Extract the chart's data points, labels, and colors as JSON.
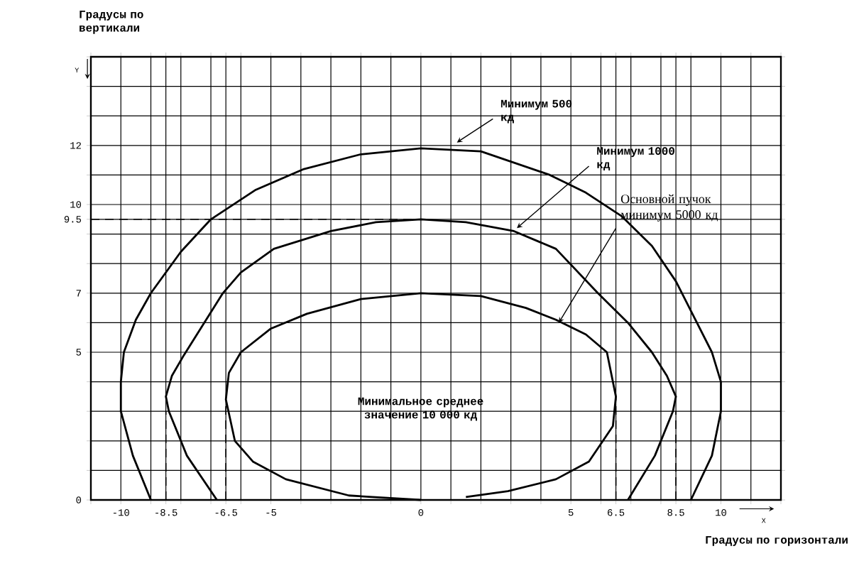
{
  "chart_data": {
    "type": "line",
    "xlabel": "Градусы по горизонтали",
    "ylabel": "Градусы по вертикали",
    "xlim": [
      -11,
      12
    ],
    "ylim": [
      0,
      15
    ],
    "xticks": [
      {
        "value": -11,
        "label": null
      },
      -10,
      {
        "value": -9,
        "label": null
      },
      {
        "value": -8.5,
        "label": "-8.5"
      },
      {
        "value": -8,
        "label": null
      },
      {
        "value": -7,
        "label": null
      },
      {
        "value": -6.5,
        "label": "-6.5"
      },
      {
        "value": -6,
        "label": null
      },
      -5,
      {
        "value": -4,
        "label": null
      },
      {
        "value": -3,
        "label": null
      },
      {
        "value": -2,
        "label": null
      },
      {
        "value": -1,
        "label": null
      },
      0,
      {
        "value": 1,
        "label": null
      },
      {
        "value": 2,
        "label": null
      },
      {
        "value": 3,
        "label": null
      },
      {
        "value": 4,
        "label": null
      },
      5,
      {
        "value": 6,
        "label": null
      },
      {
        "value": 6.5,
        "label": "6.5"
      },
      {
        "value": 7,
        "label": null
      },
      {
        "value": 8,
        "label": null
      },
      {
        "value": 8.5,
        "label": "8.5"
      },
      {
        "value": 9,
        "label": null
      },
      10,
      {
        "value": 11,
        "label": null
      },
      {
        "value": 12,
        "label": null
      }
    ],
    "yticks": [
      0,
      {
        "value": 1,
        "label": null
      },
      {
        "value": 2,
        "label": null
      },
      {
        "value": 3,
        "label": null
      },
      {
        "value": 4,
        "label": null
      },
      5,
      {
        "value": 6,
        "label": null
      },
      7,
      {
        "value": 8,
        "label": null
      },
      {
        "value": 9,
        "label": null
      },
      9.5,
      10,
      {
        "value": 11,
        "label": null
      },
      12,
      {
        "value": 13,
        "label": null
      },
      {
        "value": 14,
        "label": null
      },
      {
        "value": 15,
        "label": null
      }
    ],
    "grid": true,
    "marker": "none",
    "annotations": [
      "Y",
      "X",
      "Минимальное среднее значение 10 000 кд"
    ],
    "series": [
      {
        "name": "Минимум 500 кд",
        "color": "#000000",
        "x": [
          -9.0,
          -9.6,
          -10.0,
          -10.0,
          -9.9,
          -9.5,
          -9.0,
          -8.0,
          -7.0,
          -5.5,
          -3.9,
          -2.0,
          0,
          2.0,
          4.3,
          5.5,
          6.7,
          7.7,
          8.5,
          9.2,
          9.7,
          10.0,
          10.0,
          9.7,
          9.0
        ],
        "values": [
          0,
          1.5,
          3.0,
          4.0,
          5.0,
          6.1,
          7.0,
          8.4,
          9.5,
          10.5,
          11.2,
          11.7,
          11.9,
          11.8,
          11.0,
          10.4,
          9.6,
          8.6,
          7.4,
          6.0,
          5.0,
          4.0,
          3.0,
          1.5,
          0
        ]
      },
      {
        "name": "Минимум 1000 кд",
        "color": "#000000",
        "x": [
          -6.8,
          -7.8,
          -8.4,
          -8.5,
          -8.3,
          -7.9,
          -6.6,
          -6.0,
          -4.9,
          -3.0,
          -1.5,
          0,
          1.5,
          3.1,
          4.5,
          5.9,
          6.9,
          7.7,
          8.2,
          8.5,
          8.4,
          7.8,
          6.9
        ],
        "values": [
          0,
          1.5,
          3.0,
          3.5,
          4.2,
          4.9,
          7.0,
          7.7,
          8.5,
          9.1,
          9.4,
          9.5,
          9.4,
          9.1,
          8.5,
          7.0,
          6.0,
          5.0,
          4.2,
          3.5,
          3.0,
          1.5,
          0
        ]
      },
      {
        "name": "Основной пучок минимум 5000 кд",
        "color": "#000000",
        "x": [
          0,
          -2.4,
          -4.5,
          -5.6,
          -6.2,
          -6.5,
          -6.4,
          -6.0,
          -5.0,
          -3.8,
          -2.0,
          0,
          2.0,
          3.5,
          4.5,
          5.5,
          6.2,
          6.5,
          6.4,
          5.6,
          4.5,
          2.9,
          1.5
        ],
        "values": [
          0,
          0.15,
          0.7,
          1.3,
          2.0,
          3.4,
          4.3,
          5.0,
          5.8,
          6.3,
          6.8,
          7.0,
          6.9,
          6.5,
          6.1,
          5.6,
          5.0,
          3.5,
          2.5,
          1.3,
          0.7,
          0.3,
          0.1
        ]
      },
      {
        "color": "#000000",
        "line_style": "dashed",
        "x": [
          -11,
          0
        ],
        "values": [
          9.5,
          9.5
        ]
      },
      {
        "color": "#000000",
        "line_style": "dashed",
        "x": [
          -8.5,
          -8.5
        ],
        "values": [
          0,
          3.0
        ]
      },
      {
        "color": "#000000",
        "line_style": "dashed",
        "x": [
          -6.5,
          -6.5
        ],
        "values": [
          0,
          3.4
        ]
      },
      {
        "color": "#000000",
        "line_style": "dashed",
        "x": [
          6.5,
          6.5
        ],
        "values": [
          0,
          3.5
        ]
      },
      {
        "color": "#000000",
        "line_style": "dashed",
        "x": [
          8.5,
          8.5
        ],
        "values": [
          0,
          3.0
        ]
      }
    ]
  }
}
